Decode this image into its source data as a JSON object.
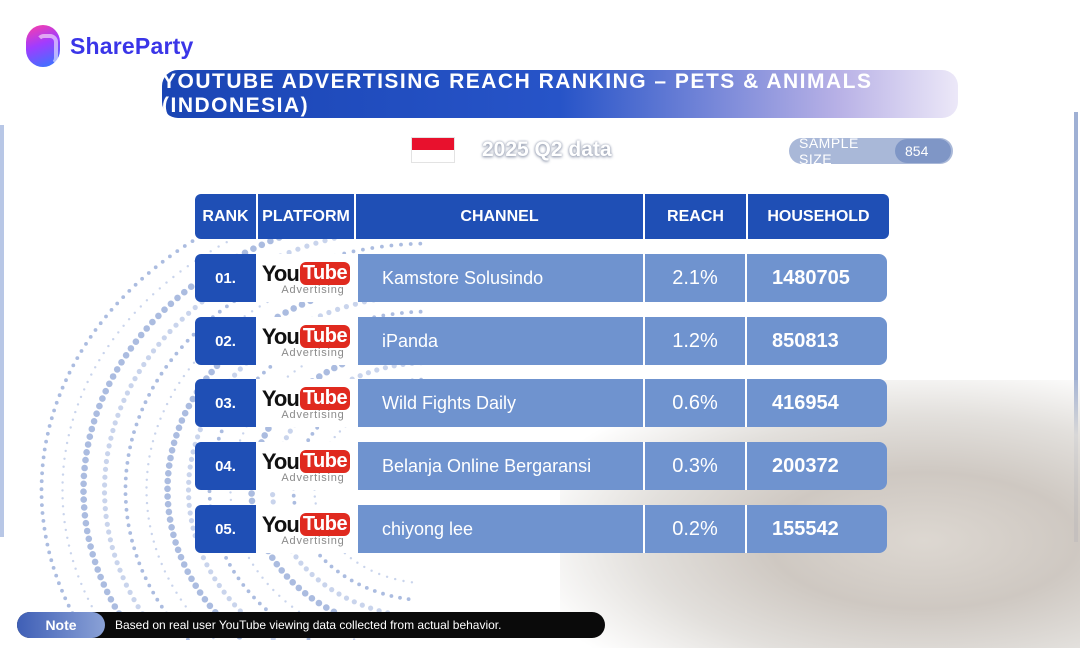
{
  "brand": {
    "name": "ShareParty"
  },
  "title": "YOUTUBE ADVERTISING REACH RANKING – PETS & ANIMALS (INDONESIA)",
  "period": "2025 Q2 data",
  "sample_size": {
    "label": "SAMPLE SIZE",
    "value": "854"
  },
  "table": {
    "headers": {
      "rank": "RANK",
      "platform": "PLATFORM",
      "channel": "CHANNEL",
      "reach": "REACH",
      "household": "HOUSEHOLD"
    },
    "rows": [
      {
        "rank": "01.",
        "platform_you": "You",
        "platform_tube": "Tube",
        "platform_sub": "Advertising",
        "channel": "Kamstore Solusindo",
        "reach": "2.1%",
        "household": "1480705"
      },
      {
        "rank": "02.",
        "platform_you": "You",
        "platform_tube": "Tube",
        "platform_sub": "Advertising",
        "channel": "iPanda",
        "reach": "1.2%",
        "household": "850813"
      },
      {
        "rank": "03.",
        "platform_you": "You",
        "platform_tube": "Tube",
        "platform_sub": "Advertising",
        "channel": "Wild Fights Daily",
        "reach": "0.6%",
        "household": "416954"
      },
      {
        "rank": "04.",
        "platform_you": "You",
        "platform_tube": "Tube",
        "platform_sub": "Advertising",
        "channel": "Belanja Online Bergaransi",
        "reach": "0.3%",
        "household": "200372"
      },
      {
        "rank": "05.",
        "platform_you": "You",
        "platform_tube": "Tube",
        "platform_sub": "Advertising",
        "channel": "chiyong lee",
        "reach": "0.2%",
        "household": "155542"
      }
    ]
  },
  "note": {
    "label": "Note",
    "text": "Based on real user YouTube viewing data collected from actual behavior."
  },
  "colors": {
    "brand": "#3a35e8",
    "header_blue": "#1f4fb5",
    "row_blue": "#6f93cf",
    "youtube_red": "#e02a1f",
    "flag_red": "#e8112d"
  },
  "icons": {
    "flag": "indonesia-flag-icon",
    "platform": "youtube-advertising-logo"
  }
}
